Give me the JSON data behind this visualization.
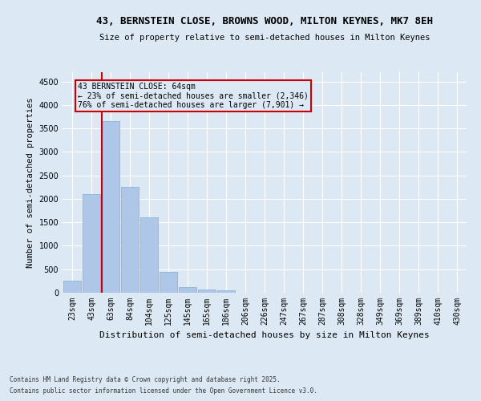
{
  "title1": "43, BERNSTEIN CLOSE, BROWNS WOOD, MILTON KEYNES, MK7 8EH",
  "title2": "Size of property relative to semi-detached houses in Milton Keynes",
  "xlabel": "Distribution of semi-detached houses by size in Milton Keynes",
  "ylabel": "Number of semi-detached properties",
  "categories": [
    "23sqm",
    "43sqm",
    "63sqm",
    "84sqm",
    "104sqm",
    "125sqm",
    "145sqm",
    "165sqm",
    "186sqm",
    "206sqm",
    "226sqm",
    "247sqm",
    "267sqm",
    "287sqm",
    "308sqm",
    "328sqm",
    "349sqm",
    "369sqm",
    "389sqm",
    "410sqm",
    "430sqm"
  ],
  "values": [
    250,
    2100,
    3650,
    2250,
    1600,
    450,
    120,
    60,
    50,
    0,
    0,
    0,
    0,
    0,
    0,
    0,
    0,
    0,
    0,
    0,
    0
  ],
  "bar_color": "#aec6e8",
  "bar_edge_color": "#7aafd4",
  "bg_color": "#dce9f5",
  "grid_color": "#ffffff",
  "vline_color": "#cc0000",
  "vline_x_index": 2,
  "annotation_title": "43 BERNSTEIN CLOSE: 64sqm",
  "annotation_line1": "← 23% of semi-detached houses are smaller (2,346)",
  "annotation_line2": "76% of semi-detached houses are larger (7,901) →",
  "annotation_box_color": "#cc0000",
  "ylim": [
    0,
    4700
  ],
  "yticks": [
    0,
    500,
    1000,
    1500,
    2000,
    2500,
    3000,
    3500,
    4000,
    4500
  ],
  "footnote1": "Contains HM Land Registry data © Crown copyright and database right 2025.",
  "footnote2": "Contains public sector information licensed under the Open Government Licence v3.0."
}
